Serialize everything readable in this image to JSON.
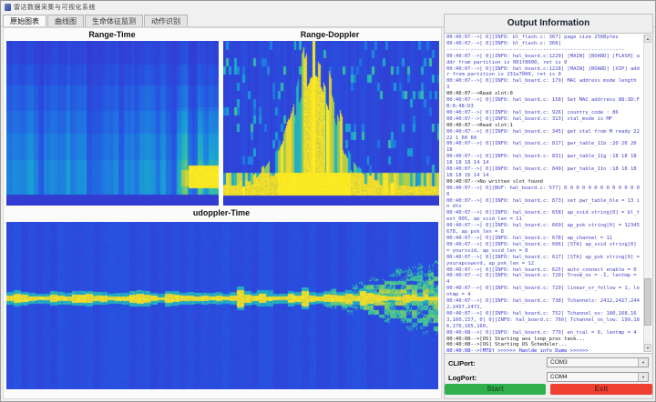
{
  "window": {
    "title": "雷达数据采集与可视化系统"
  },
  "tabs": [
    {
      "label": "原始图表",
      "selected": true
    },
    {
      "label": "曲线图",
      "selected": false
    },
    {
      "label": "生命体征监测",
      "selected": false
    },
    {
      "label": "动作识别",
      "selected": false
    }
  ],
  "output_panel": {
    "header": "Output Information",
    "cli_port_label": "CLIPort:",
    "cli_port_value": "COM3",
    "log_port_label": "LogPort:",
    "log_port_value": "COM4",
    "start_label": "Start",
    "exit_label": "Exit",
    "log": [
      {
        "c": "info",
        "t": "00:40:07-->[ 0][INFO: bl_flash.c: 367] page size 256Bytes"
      },
      {
        "c": "info",
        "t": "00:40:07-->[ 0][INFO: bl_flash.c: 368]"
      },
      {
        "c": "info",
        "t": "-----------------------------------------------------------"
      },
      {
        "c": "info",
        "t": "00:40:07-->[ 0][INFO: hal_board.c:1220] [MAIN] [BOARD] [FLASH] addr from partition is 001f8000, ret is 0"
      },
      {
        "c": "info",
        "t": "00:40:07-->[ 0][INFO: hal_board.c:1228] [MAIN] [BOARD] [XIP] addr from partition is 231e7000, ret is 0"
      },
      {
        "c": "info",
        "t": "00:40:07-->[ 0][INFO: hal_board.c: 179] MAC address mode length 3"
      },
      {
        "c": "plain",
        "t": "00:40:07-->Read slot:0"
      },
      {
        "c": "info",
        "t": "00:40:07-->[ 0][INFO: hal_board.c: 158] Set MAC addrress 88:3D:FB:8:48:D3"
      },
      {
        "c": "info",
        "t": "00:40:07-->[ 0][INFO: hal_board.c: 926] country_code : 86"
      },
      {
        "c": "info",
        "t": "00:40:07-->[ 0][INFO: hal_board.c: 313] xtal_mode is MF"
      },
      {
        "c": "plain",
        "t": "00:40:07-->Read slot:1"
      },
      {
        "c": "info",
        "t": "00:40:07-->[ 0][INFO: hal_board.c: 345] get xtal from M ready 22 22 1 60 60"
      },
      {
        "c": "info",
        "t": "00:40:07-->[ 0][INFO: hal_board.c: 817] pwr_table_11b :20 20 20 18"
      },
      {
        "c": "info",
        "t": "00:40:07-->[ 0][INFO: hal_board.c: 831] pwr_table_11g :18 18 18 18 18 18 14 14"
      },
      {
        "c": "info",
        "t": "00:40:07-->[ 0][INFO: hal_board.c: 849] pwr_table_11n :18 18 18 18 18 16 14 14"
      },
      {
        "c": "plain",
        "t": "00:40:07-->No written slot found"
      },
      {
        "c": "info",
        "t": "00:40:07-->[ 0][BUF: hal_board.c: 577] 0 0 0 0 0 0 0 0 0 0 0 0 0 0"
      },
      {
        "c": "info",
        "t": "00:40:07-->[ 0][INFO: hal_board.c: 873] set pwr_table_ble = 13 in dts"
      },
      {
        "c": "info",
        "t": "00:40:07-->[ 0][INFO: hal_board.c: 658] ap_ssid string[0] = bl_test_005, ap_ssid_len = 11"
      },
      {
        "c": "info",
        "t": "00:40:07-->[ 0][INFO: hal_board.c: 669] ap_psk string[0] = 12345678, ap_psk_len = 8"
      },
      {
        "c": "info",
        "t": "00:40:07-->[ 0][INFO: hal_board.c: 678] ap_channel = 11"
      },
      {
        "c": "info",
        "t": "00:40:07-->[ 0][INFO: hal_board.c: 606] [STA] ap_ssid string[0] = yourssid, ap_ssid_len = 8"
      },
      {
        "c": "info",
        "t": "00:40:07-->[ 0][INFO: hal_board.c: 617] [STA] ap_psk string[0] = yourapssword, ap_psk_len = 12"
      },
      {
        "c": "info",
        "t": "00:40:07-->[ 0][INFO: hal_board.c: 625] auto_connect_enable = 0"
      },
      {
        "c": "info",
        "t": "00:40:07-->[ 0][INFO: hal_board.c: 720] Troom_os = -1, lentmp = 4"
      },
      {
        "c": "info",
        "t": "00:40:07-->[ 0][INFO: hal_board.c: 729] linear_or_follow = 1, lentmp = 4"
      },
      {
        "c": "info",
        "t": "00:40:07-->[ 0][INFO: hal_board.c: 738] Tchannels: 2412,2427,2442,2457,2472,"
      },
      {
        "c": "info",
        "t": "00:40:07-->[ 0][INFO: hal_board.c: 752] Tchannel_os: 180,168,163,160,157, 0[ 0][INFO: hal_board.c: 766] Tchannel_os_low: 199,186,170,165,160,"
      },
      {
        "c": "info",
        "t": "00:40:08-->[ 0][INFO: hal_board.c: 779] en_tcal = 0, lentmp = 4"
      },
      {
        "c": "plain",
        "t": "00:40:08-->[OS] Starting aos_loop_proc task..."
      },
      {
        "c": "plain",
        "t": "00:40:08-->[OS] Starting OS Scheduler..."
      },
      {
        "c": "highlight",
        "t": "00:40:08-->[MTD] >>>>>> Hanlde info Dump >>>>>>"
      },
      {
        "c": "plain",
        "t": "00:40:08-->name PSM"
      }
    ]
  },
  "colors": {
    "start_button": "#2fb04c",
    "exit_button": "#ee3f31",
    "info_text": "#4b45c6",
    "highlight_text": "#2222ee",
    "colormap_stops": [
      [
        0.0,
        [
          58,
          48,
          200
        ]
      ],
      [
        0.15,
        [
          40,
          80,
          225
        ]
      ],
      [
        0.3,
        [
          30,
          125,
          225
        ]
      ],
      [
        0.45,
        [
          25,
          165,
          210
        ]
      ],
      [
        0.6,
        [
          60,
          195,
          155
        ]
      ],
      [
        0.75,
        [
          160,
          205,
          80
        ]
      ],
      [
        0.88,
        [
          235,
          210,
          50
        ]
      ],
      [
        1.0,
        [
          255,
          240,
          30
        ]
      ]
    ]
  },
  "chart_data": [
    {
      "type": "heatmap",
      "kind": "range_time",
      "canvas": "cv-rt",
      "title": "Range-Time",
      "xlabel": "",
      "ylabel": "",
      "colormap": "parula",
      "axes_visible": false,
      "grid": false,
      "seed": 11,
      "description": "Range-time intensity map: low blue intensity at top, banded rows with vertical striping brightening toward the bottom, strong yellow return patch at bottom-right corner, dark margin at very bottom",
      "features": {}
    },
    {
      "type": "heatmap",
      "kind": "range_doppler",
      "canvas": "cv-rd",
      "title": "Range-Doppler",
      "xlabel": "",
      "ylabel": "",
      "colormap": "parula",
      "axes_visible": false,
      "grid": false,
      "seed": 23,
      "description": "Doppler spectrum: dark blue background with scattered cyan dashes, a bright yellow central peak widening toward its base, and a speckled bright horizontal band near the bottom with a solid yellow center",
      "features": {
        "center_x": 0.42
      }
    },
    {
      "type": "heatmap",
      "kind": "udoppler_time",
      "canvas": "cv-ud",
      "title": "udoppler-Time",
      "xlabel": "",
      "ylabel": "",
      "colormap": "parula",
      "axes_visible": false,
      "grid": false,
      "seed": 37,
      "description": "Micro-doppler vs time: blue noise background, thin bright yellow zero-doppler line across full width with cyan fringes, large turbulent yellow/cyan blob spreading above and below the line on the right side",
      "features": {
        "line_y": 0.455,
        "blob_x": 0.7
      }
    }
  ]
}
